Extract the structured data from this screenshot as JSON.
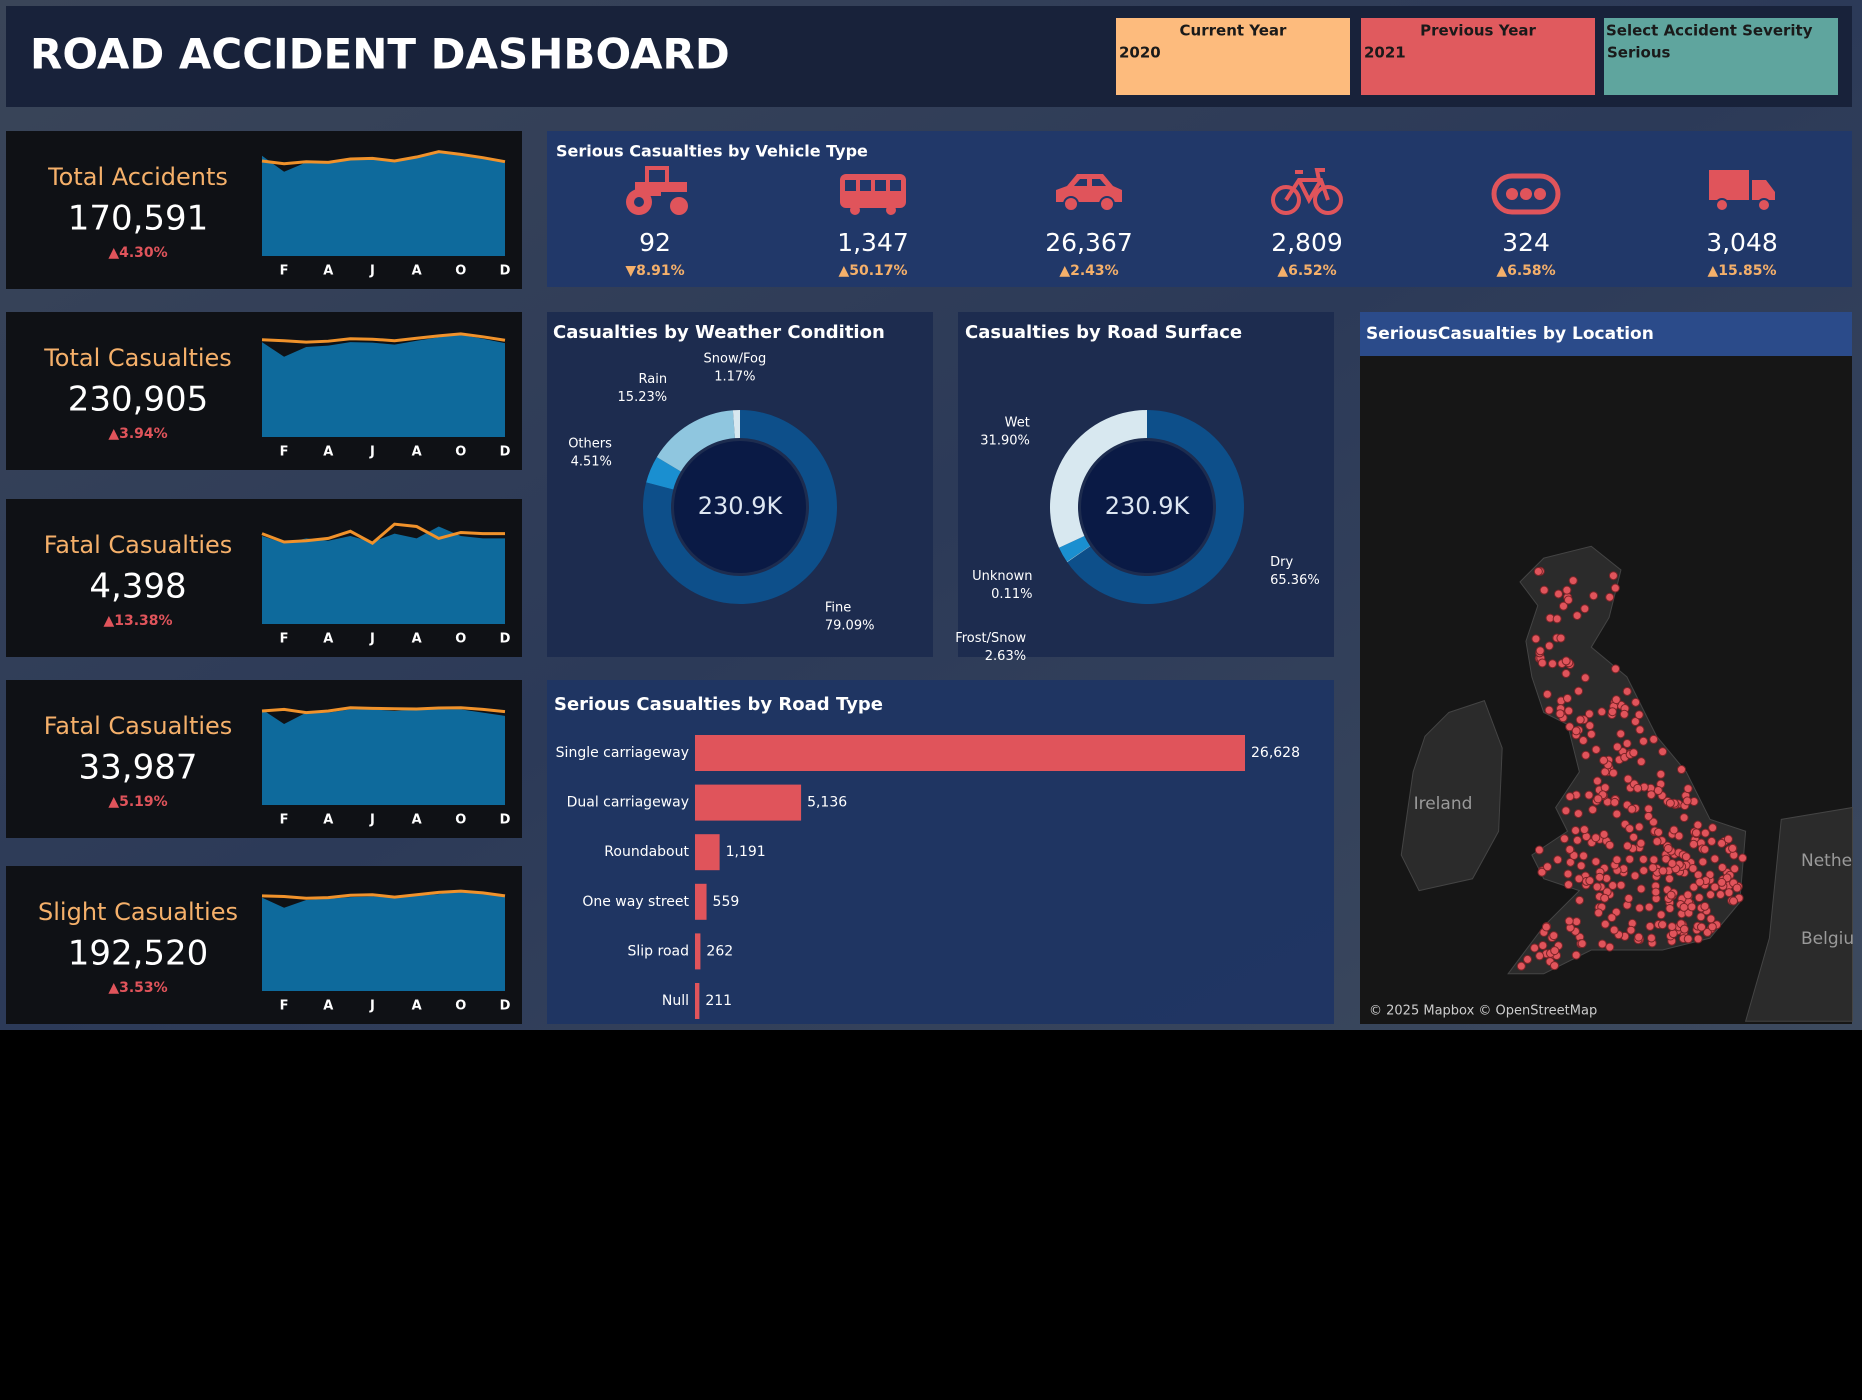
{
  "header": {
    "title": "ROAD ACCIDENT DASHBOARD"
  },
  "filters": [
    {
      "label": "Current Year",
      "value": "2020",
      "color": "#fdbb7d"
    },
    {
      "label": "Previous Year",
      "value": "2021",
      "color": "#e05a5e"
    },
    {
      "label": "Select Accident Severity",
      "value": "Serious",
      "color": "#5fa59e"
    }
  ],
  "kpis": [
    {
      "title": "Total Accidents",
      "value": "170,591",
      "change": "▲4.30%",
      "trend": {
        "type": "area",
        "categories": [
          null,
          "F",
          null,
          "A",
          null,
          "J",
          null,
          "A",
          null,
          "O",
          null,
          "D"
        ],
        "ylim": [
          0,
          16000
        ],
        "series": [
          {
            "color": "#0e6a9c",
            "values": [
              15000,
              12600,
              14000,
              13800,
              14500,
              14700,
              14000,
              14900,
              15600,
              15400,
              14800,
              13900
            ]
          },
          {
            "color": "#f0922b",
            "values": [
              14200,
              13800,
              14100,
              14000,
              14500,
              14600,
              14200,
              14800,
              15600,
              15200,
              14700,
              14100
            ]
          }
        ]
      }
    },
    {
      "title": "Total Casualties",
      "value": "230,905",
      "change": "▲3.94%",
      "trend": {
        "type": "area",
        "categories": [
          null,
          "F",
          null,
          "A",
          null,
          "J",
          null,
          "A",
          null,
          "O",
          null,
          "D"
        ],
        "ylim": [
          0,
          22000
        ],
        "series": [
          {
            "color": "#0e6a9c",
            "values": [
              19500,
              16500,
              18500,
              18800,
              19500,
              19400,
              19000,
              19800,
              20500,
              21000,
              20200,
              19300
            ]
          },
          {
            "color": "#f0922b",
            "values": [
              20000,
              19800,
              19500,
              19700,
              20200,
              20100,
              19800,
              20300,
              20800,
              21200,
              20600,
              19900
            ]
          }
        ]
      }
    },
    {
      "title": "Fatal Casualties",
      "value": "4,398",
      "change": "▲13.38%",
      "trend": {
        "type": "area",
        "categories": [
          null,
          "F",
          null,
          "A",
          null,
          "J",
          null,
          "A",
          null,
          "O",
          null,
          "D"
        ],
        "ylim": [
          0,
          450
        ],
        "series": [
          {
            "color": "#0e6a9c",
            "values": [
              370,
              340,
              360,
              350,
              370,
              345,
              380,
              360,
              410,
              370,
              360,
              360
            ]
          },
          {
            "color": "#f0922b",
            "values": [
              380,
              345,
              350,
              360,
              390,
              340,
              420,
              410,
              360,
              385,
              380,
              380
            ]
          }
        ]
      }
    },
    {
      "title": "Fatal Casualties",
      "value": "33,987",
      "change": "▲5.19%",
      "trend": {
        "type": "area",
        "categories": [
          null,
          "F",
          null,
          "A",
          null,
          "J",
          null,
          "A",
          null,
          "O",
          null,
          "D"
        ],
        "ylim": [
          0,
          3300
        ],
        "series": [
          {
            "color": "#0e6a9c",
            "values": [
              2950,
              2500,
              2850,
              2850,
              2950,
              2950,
              2900,
              2950,
              2950,
              2950,
              2850,
              2750
            ]
          },
          {
            "color": "#f0922b",
            "values": [
              2900,
              2950,
              2850,
              2900,
              3000,
              2980,
              2970,
              2960,
              2990,
              3000,
              2950,
              2880
            ]
          }
        ]
      }
    },
    {
      "title": "Slight Casualties",
      "value": "192,520",
      "change": "▲3.53%",
      "trend": {
        "type": "area",
        "categories": [
          null,
          "F",
          null,
          "A",
          null,
          "J",
          null,
          "A",
          null,
          "O",
          null,
          "D"
        ],
        "ylim": [
          0,
          18000
        ],
        "series": [
          {
            "color": "#0e6a9c",
            "values": [
              15700,
              14000,
              15300,
              15500,
              15800,
              15900,
              15700,
              16000,
              16300,
              16900,
              16600,
              15800
            ]
          },
          {
            "color": "#f0922b",
            "values": [
              16000,
              15900,
              15600,
              15700,
              16100,
              16200,
              15800,
              16200,
              16600,
              16800,
              16500,
              16000
            ]
          }
        ]
      }
    }
  ],
  "vehicles": {
    "title": "Serious Casualties by Vehicle Type",
    "color": "#e0545b",
    "items": [
      {
        "value": "92",
        "change": "▼8.91%"
      },
      {
        "value": "1,347",
        "change": "▲50.17%"
      },
      {
        "value": "26,367",
        "change": "▲2.43%"
      },
      {
        "value": "2,809",
        "change": "▲6.52%"
      },
      {
        "value": "324",
        "change": "▲6.58%"
      },
      {
        "value": "3,048",
        "change": "▲15.85%"
      }
    ]
  },
  "chart_data": [
    {
      "type": "donut",
      "title": "Casualties by Weather Condition",
      "center_label": "230.9K",
      "categories": [
        "Fine",
        "Others",
        "Rain",
        "Snow/Fog"
      ],
      "values": [
        79.09,
        4.51,
        15.23,
        1.17
      ],
      "value_labels": [
        "79.09%",
        "4.51%",
        "15.23%",
        "1.17%"
      ],
      "colors": [
        "#0d4f8a",
        "#1a8fd0",
        "#8fc6df",
        "#d8e8f0"
      ]
    },
    {
      "type": "donut",
      "title": "Casualties by Road Surface",
      "center_label": "230.9K",
      "categories": [
        "Dry",
        "Unknown",
        "Frost/Snow",
        "Wet"
      ],
      "values": [
        65.36,
        0.11,
        2.63,
        31.9
      ],
      "value_labels": [
        "65.36%",
        "0.11%",
        "2.63%",
        "31.90%"
      ],
      "colors": [
        "#0d4f8a",
        "#8fc6df",
        "#1a8fd0",
        "#d8e8f0"
      ]
    },
    {
      "type": "bar",
      "orientation": "horizontal",
      "title": "Serious Casualties by Road Type",
      "categories": [
        "Single carriageway",
        "Dual carriageway",
        "Roundabout",
        "One way street",
        "Slip road",
        "Null"
      ],
      "values": [
        26628,
        5136,
        1191,
        559,
        262,
        211
      ],
      "value_labels": [
        "26,628",
        "5,136",
        "1,191",
        "559",
        "262",
        "211"
      ],
      "color": "#e0545b"
    }
  ],
  "map": {
    "title": "SeriousCasualties by Location",
    "labels": [
      "Ireland",
      "Nethe",
      "Belgiu"
    ],
    "attribution": "© 2025 Mapbox © OpenStreetMap"
  }
}
